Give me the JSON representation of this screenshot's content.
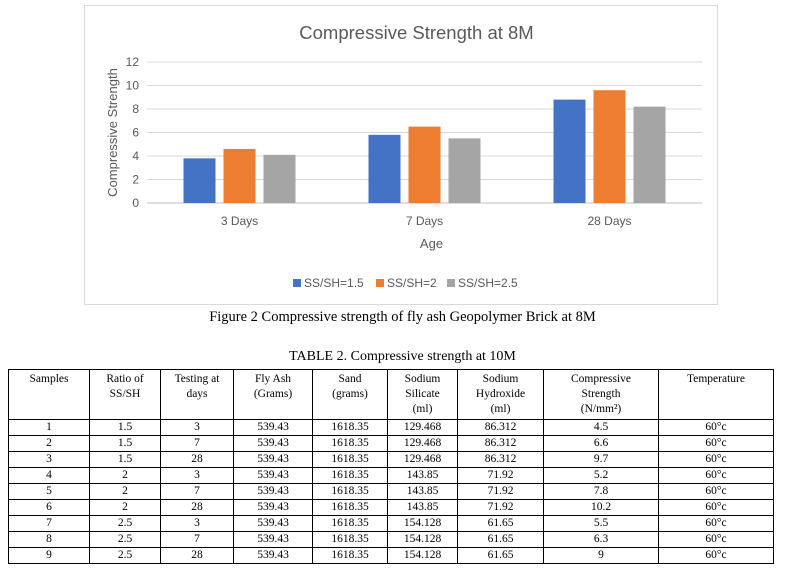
{
  "chart_data": {
    "type": "bar",
    "title": "Compressive Strength at 8M",
    "xlabel": "Age",
    "ylabel": "Compressive Strength",
    "categories": [
      "3 Days",
      "7 Days",
      "28 Days"
    ],
    "ylim": [
      0,
      12
    ],
    "yticks": [
      0,
      2,
      4,
      6,
      8,
      10,
      12
    ],
    "grid": true,
    "legend_position": "bottom",
    "series": [
      {
        "name": "SS/SH=1.5",
        "color": "#4472C4",
        "values": [
          3.8,
          5.8,
          8.8
        ]
      },
      {
        "name": "SS/SH=2",
        "color": "#ED7D31",
        "values": [
          4.6,
          6.5,
          9.6
        ]
      },
      {
        "name": "SS/SH=2.5",
        "color": "#A5A5A5",
        "values": [
          4.1,
          5.5,
          8.2
        ]
      }
    ]
  },
  "figure_caption": "Figure 2 Compressive strength of fly ash Geopolymer Brick at 8M",
  "table": {
    "caption": "TABLE 2. Compressive strength at 10M",
    "headers": [
      [
        "Samples"
      ],
      [
        "Ratio of",
        "SS/SH"
      ],
      [
        "Testing at",
        "days"
      ],
      [
        "Fly Ash",
        "(Grams)"
      ],
      [
        "Sand",
        "(grams)"
      ],
      [
        "Sodium",
        "Silicate",
        "(ml)"
      ],
      [
        "Sodium",
        "Hydroxide",
        "(ml)"
      ],
      [
        "Compressive",
        "Strength",
        "(N/mm²)"
      ],
      [
        "Temperature"
      ]
    ],
    "rows": [
      [
        "1",
        "1.5",
        "3",
        "539.43",
        "1618.35",
        "129.468",
        "86.312",
        "4.5",
        "60°c"
      ],
      [
        "2",
        "1.5",
        "7",
        "539.43",
        "1618.35",
        "129.468",
        "86.312",
        "6.6",
        "60°c"
      ],
      [
        "3",
        "1.5",
        "28",
        "539.43",
        "1618.35",
        "129.468",
        "86.312",
        "9.7",
        "60°c"
      ],
      [
        "4",
        "2",
        "3",
        "539.43",
        "1618.35",
        "143.85",
        "71.92",
        "5.2",
        "60°c"
      ],
      [
        "5",
        "2",
        "7",
        "539.43",
        "1618.35",
        "143.85",
        "71.92",
        "7.8",
        "60°c"
      ],
      [
        "6",
        "2",
        "28",
        "539.43",
        "1618.35",
        "143.85",
        "71.92",
        "10.2",
        "60°c"
      ],
      [
        "7",
        "2.5",
        "3",
        "539.43",
        "1618.35",
        "154.128",
        "61.65",
        "5.5",
        "60°c"
      ],
      [
        "8",
        "2.5",
        "7",
        "539.43",
        "1618.35",
        "154.128",
        "61.65",
        "6.3",
        "60°c"
      ],
      [
        "9",
        "2.5",
        "28",
        "539.43",
        "1618.35",
        "154.128",
        "61.65",
        "9",
        "60°c"
      ]
    ]
  }
}
